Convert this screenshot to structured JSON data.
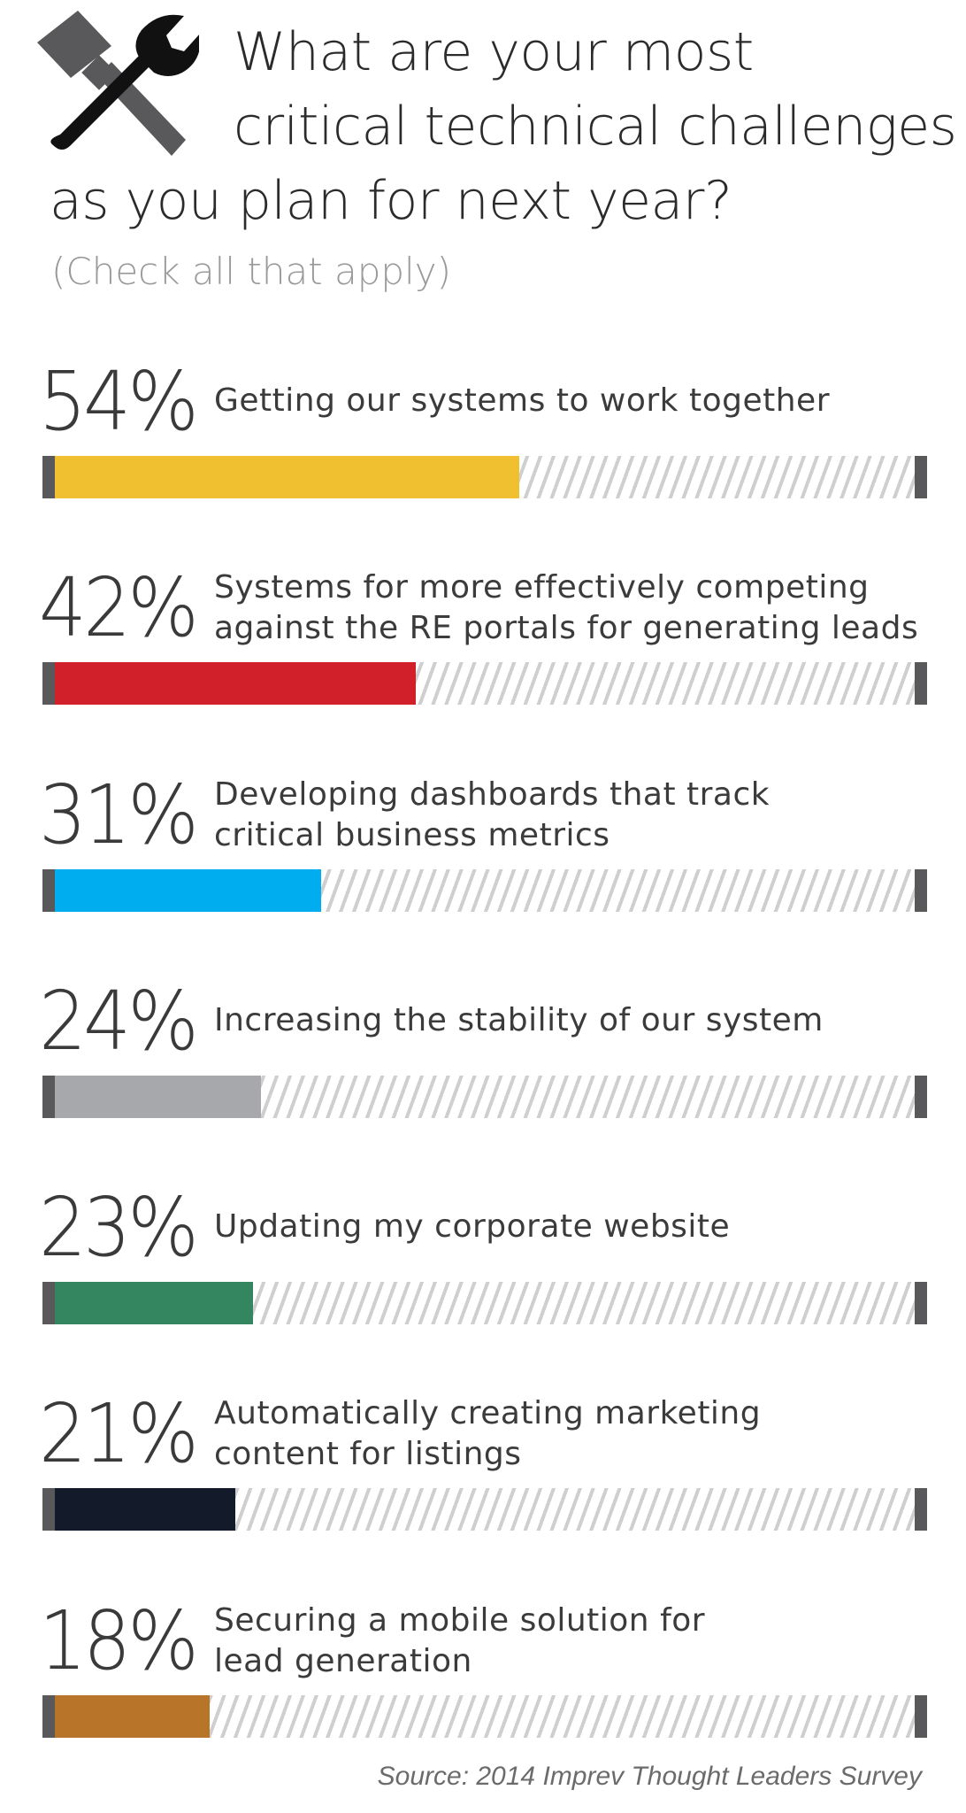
{
  "header": {
    "title_line1": "What are your most",
    "title_line2": "critical technical challenges",
    "title_line3": "as you plan for next year?",
    "subtitle": "(Check all that apply)",
    "icon": "hammer-wrench-icon"
  },
  "chart_data": {
    "type": "bar",
    "title": "What are your most critical technical challenges as you plan for next year?",
    "subtitle": "(Check all that apply)",
    "xlim": [
      0,
      100
    ],
    "unit": "%",
    "series": [
      {
        "label": "54%",
        "value": 54,
        "line1": "Getting our systems to work together",
        "line2": "",
        "color": "#f0c030"
      },
      {
        "label": "42%",
        "value": 42,
        "line1": "Systems for more effectively competing",
        "line2": "against the RE portals for generating leads",
        "color": "#d2202a"
      },
      {
        "label": "31%",
        "value": 31,
        "line1": "Developing dashboards that track",
        "line2": "critical business metrics",
        "color": "#00aeef"
      },
      {
        "label": "24%",
        "value": 24,
        "line1": "Increasing the stability of our system",
        "line2": "",
        "color": "#a6a8ab"
      },
      {
        "label": "23%",
        "value": 23,
        "line1": "Updating my corporate website",
        "line2": "",
        "color": "#338660"
      },
      {
        "label": "21%",
        "value": 21,
        "line1": "Automatically creating marketing",
        "line2": "content for listings",
        "color": "#131b2b"
      },
      {
        "label": "18%",
        "value": 18,
        "line1": "Securing a mobile solution for",
        "line2": "lead generation",
        "color": "#b8752a"
      }
    ]
  },
  "footer": {
    "source": "Source: 2014 Imprev Thought Leaders Survey"
  }
}
